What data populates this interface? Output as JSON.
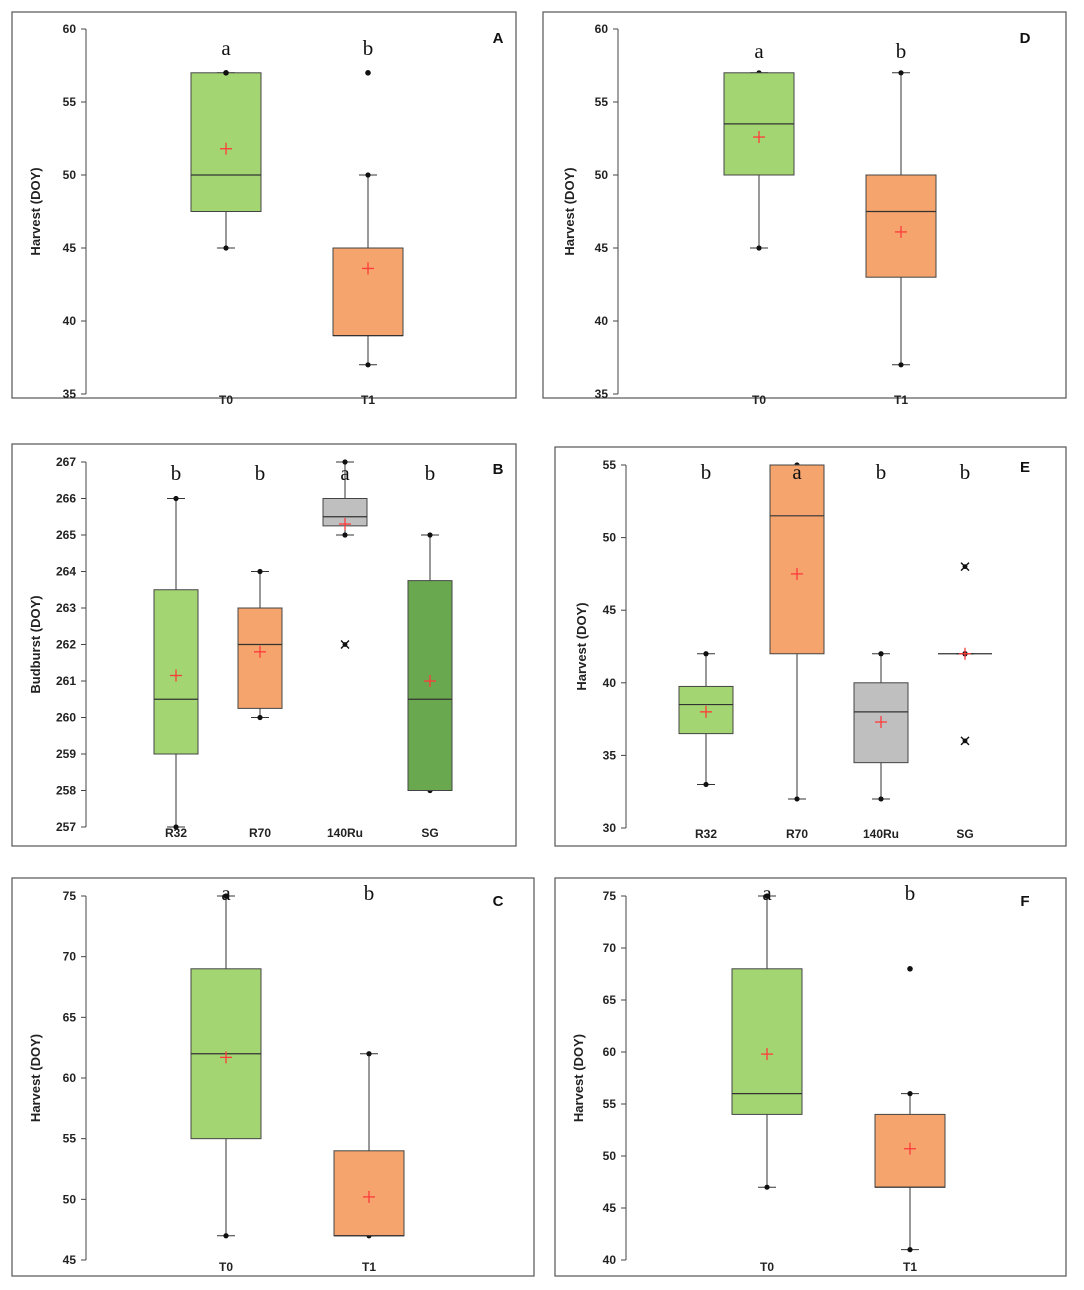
{
  "chart_data": [
    {
      "panel": "A",
      "type": "box",
      "ylabel": "Harvest (DOY)",
      "ylim": [
        35,
        60
      ],
      "ticks": [
        35,
        40,
        45,
        50,
        55,
        60
      ],
      "categories": [
        "T0",
        "T1"
      ],
      "boxes": [
        {
          "category": "T0",
          "min": 45,
          "q1": 47.5,
          "median": 50,
          "q3": 57,
          "max": 57,
          "mean": 51.8,
          "color": "#a3d672",
          "letter": "a",
          "outliers": [
            {
              "value": 57,
              "kind": "dot"
            }
          ]
        },
        {
          "category": "T1",
          "min": 37,
          "q1": 39,
          "median": 39,
          "q3": 45,
          "max": 50,
          "mean": 43.6,
          "color": "#f4a46c",
          "letter": "b",
          "outliers": [
            {
              "value": 57,
              "kind": "dot"
            }
          ]
        }
      ]
    },
    {
      "panel": "D",
      "type": "box",
      "ylabel": "Harvest (DOY)",
      "ylim": [
        35,
        60
      ],
      "ticks": [
        35,
        40,
        45,
        50,
        55,
        60
      ],
      "categories": [
        "T0",
        "T1"
      ],
      "boxes": [
        {
          "category": "T0",
          "min": 45,
          "q1": 50,
          "median": 53.5,
          "q3": 57,
          "max": 57,
          "mean": 52.6,
          "color": "#a3d672",
          "letter": "a",
          "outliers": []
        },
        {
          "category": "T1",
          "min": 37,
          "q1": 43,
          "median": 47.5,
          "q3": 50,
          "max": 57,
          "mean": 46.1,
          "color": "#f4a46c",
          "letter": "b",
          "outliers": []
        }
      ]
    },
    {
      "panel": "B",
      "type": "box",
      "ylabel": "Budburst (DOY)",
      "ylim": [
        257,
        267
      ],
      "ticks": [
        257,
        258,
        259,
        260,
        261,
        262,
        263,
        264,
        265,
        266,
        267
      ],
      "categories": [
        "R32",
        "R70",
        "140Ru",
        "SG"
      ],
      "boxes": [
        {
          "category": "R32",
          "min": 257,
          "q1": 259,
          "median": 260.5,
          "q3": 263.5,
          "max": 266,
          "mean": 261.15,
          "color": "#a3d672",
          "letter": "b",
          "outliers": []
        },
        {
          "category": "R70",
          "min": 260,
          "q1": 260.25,
          "median": 262,
          "q3": 263,
          "max": 264,
          "mean": 261.8,
          "color": "#f4a46c",
          "letter": "b",
          "outliers": []
        },
        {
          "category": "140Ru",
          "min": 265,
          "q1": 265.25,
          "median": 265.5,
          "q3": 266,
          "max": 267,
          "mean": 265.3,
          "color": "#bfbfbf",
          "letter": "a",
          "outliers": [
            {
              "value": 262,
              "kind": "x"
            }
          ]
        },
        {
          "category": "SG",
          "min": 258,
          "q1": 258,
          "median": 260.5,
          "q3": 263.75,
          "max": 265,
          "mean": 261,
          "color": "#6aa84f",
          "letter": "b",
          "outliers": []
        }
      ]
    },
    {
      "panel": "E",
      "type": "box",
      "ylabel": "Harvest (DOY)",
      "ylim": [
        30,
        55
      ],
      "ticks": [
        30,
        35,
        40,
        45,
        50,
        55
      ],
      "categories": [
        "R32",
        "R70",
        "140Ru",
        "SG"
      ],
      "boxes": [
        {
          "category": "R32",
          "min": 33,
          "q1": 36.5,
          "median": 38.5,
          "q3": 39.75,
          "max": 42,
          "mean": 38,
          "color": "#a3d672",
          "letter": "b",
          "outliers": []
        },
        {
          "category": "R70",
          "min": 32,
          "q1": 42,
          "median": 51.5,
          "q3": 55,
          "max": 55,
          "mean": 47.5,
          "color": "#f4a46c",
          "letter": "a",
          "outliers": []
        },
        {
          "category": "140Ru",
          "min": 32,
          "q1": 34.5,
          "median": 38,
          "q3": 40,
          "max": 42,
          "mean": 37.3,
          "color": "#bfbfbf",
          "letter": "b",
          "outliers": []
        },
        {
          "category": "SG",
          "min": 42,
          "q1": 42,
          "median": 42,
          "q3": 42,
          "max": 42,
          "mean": 42,
          "color": "#6aa84f",
          "letter": "b",
          "outliers": [
            {
              "value": 48,
              "kind": "x"
            },
            {
              "value": 36,
              "kind": "x"
            }
          ]
        }
      ]
    },
    {
      "panel": "C",
      "type": "box",
      "ylabel": "Harvest (DOY)",
      "ylim": [
        45,
        75
      ],
      "ticks": [
        45,
        50,
        55,
        60,
        65,
        70,
        75
      ],
      "categories": [
        "T0",
        "T1"
      ],
      "boxes": [
        {
          "category": "T0",
          "min": 47,
          "q1": 55,
          "median": 62,
          "q3": 69,
          "max": 75,
          "mean": 61.7,
          "color": "#a3d672",
          "letter": "a",
          "outliers": []
        },
        {
          "category": "T1",
          "min": 47,
          "q1": 47,
          "median": 47,
          "q3": 54,
          "max": 62,
          "mean": 50.2,
          "color": "#f4a46c",
          "letter": "b",
          "outliers": []
        }
      ]
    },
    {
      "panel": "F",
      "type": "box",
      "ylabel": "Harvest (DOY)",
      "ylim": [
        40,
        75
      ],
      "ticks": [
        40,
        45,
        50,
        55,
        60,
        65,
        70,
        75
      ],
      "categories": [
        "T0",
        "T1"
      ],
      "boxes": [
        {
          "category": "T0",
          "min": 47,
          "q1": 54,
          "median": 56,
          "q3": 68,
          "max": 75,
          "mean": 59.8,
          "color": "#a3d672",
          "letter": "a",
          "outliers": []
        },
        {
          "category": "T1",
          "min": 41,
          "q1": 47,
          "median": 47,
          "q3": 54,
          "max": 56,
          "mean": 50.7,
          "color": "#f4a46c",
          "letter": "b",
          "outliers": [
            {
              "value": 68,
              "kind": "dot"
            }
          ]
        }
      ]
    }
  ]
}
